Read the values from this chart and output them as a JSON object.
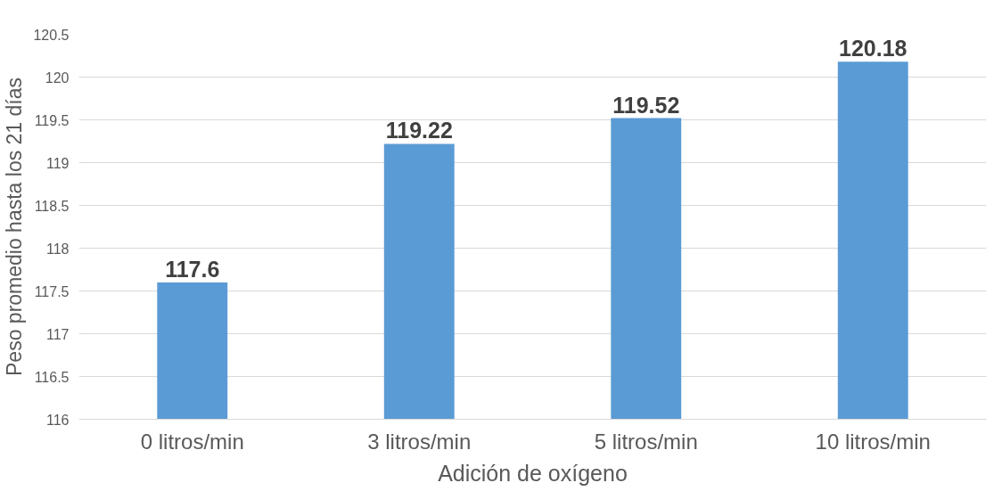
{
  "chart_data": {
    "type": "bar",
    "xlabel": "Adición de oxígeno",
    "ylabel": "Peso promedio hasta los 21 días",
    "categories": [
      "0 litros/min",
      "3 litros/min",
      "5 litros/min",
      "10 litros/min"
    ],
    "values": [
      117.6,
      119.22,
      119.52,
      120.18
    ],
    "color": "#5b9bd5",
    "ylim": [
      116,
      120.5
    ],
    "yticks": [
      116,
      116.5,
      117,
      117.5,
      118,
      118.5,
      119,
      119.5,
      120,
      120.5
    ],
    "grid": "y",
    "data_labels": true
  }
}
